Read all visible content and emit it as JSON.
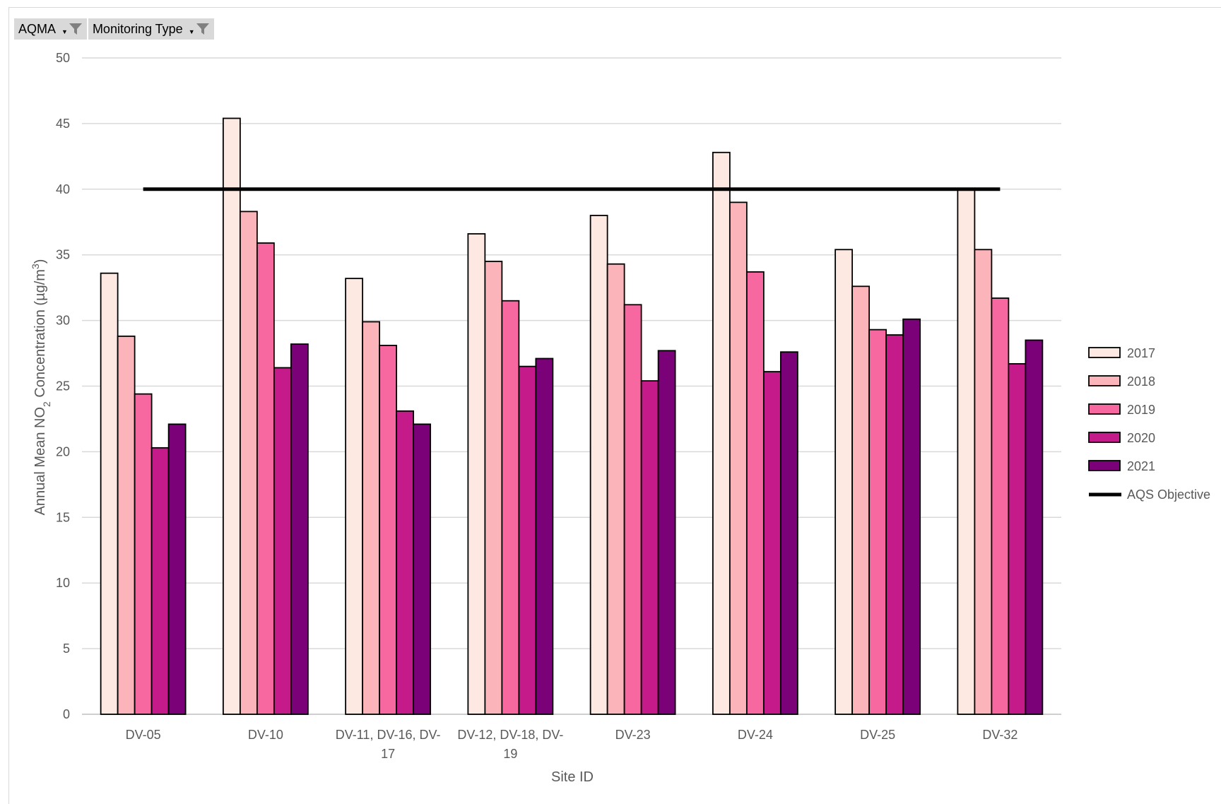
{
  "filters": [
    {
      "label": "AQMA",
      "icon": "filter-icon"
    },
    {
      "label": "Monitoring Type",
      "icon": "filter-icon"
    }
  ],
  "chart_data": {
    "type": "bar",
    "title": "",
    "xlabel": "Site ID",
    "ylabel_parts": [
      "Annual Mean NO",
      "2",
      " Concentration (µg/m",
      "3",
      ")"
    ],
    "ylim": [
      0,
      50
    ],
    "yticks": [
      0,
      5,
      10,
      15,
      20,
      25,
      30,
      35,
      40,
      45,
      50
    ],
    "grid": true,
    "legend_position": "right",
    "categories": [
      "DV-05",
      "DV-10",
      "DV-11, DV-16, DV-17",
      "DV-12, DV-18, DV-19",
      "DV-23",
      "DV-24",
      "DV-25",
      "DV-32"
    ],
    "category_label_lines": [
      [
        "DV-05"
      ],
      [
        "DV-10"
      ],
      [
        "DV-11, DV-16, DV-",
        "17"
      ],
      [
        "DV-12, DV-18, DV-",
        "19"
      ],
      [
        "DV-23"
      ],
      [
        "DV-24"
      ],
      [
        "DV-25"
      ],
      [
        "DV-32"
      ]
    ],
    "series": [
      {
        "name": "2017",
        "color": "#fde9e1",
        "values": [
          33.6,
          45.4,
          33.2,
          36.6,
          38.0,
          42.8,
          35.4,
          40.0
        ]
      },
      {
        "name": "2018",
        "color": "#fbb4b9",
        "values": [
          28.8,
          38.3,
          29.9,
          34.5,
          34.3,
          39.0,
          32.6,
          35.4
        ]
      },
      {
        "name": "2019",
        "color": "#f768a1",
        "values": [
          24.4,
          35.9,
          28.1,
          31.5,
          31.2,
          33.7,
          29.3,
          31.7
        ]
      },
      {
        "name": "2020",
        "color": "#c51b8a",
        "values": [
          20.3,
          26.4,
          23.1,
          26.5,
          25.4,
          26.1,
          28.9,
          26.7
        ]
      },
      {
        "name": "2021",
        "color": "#7a0177",
        "values": [
          22.1,
          28.2,
          22.1,
          27.1,
          27.7,
          27.6,
          30.1,
          28.5
        ]
      }
    ],
    "objective": {
      "name": "AQS Objective",
      "value": 40,
      "color": "#000000"
    }
  }
}
